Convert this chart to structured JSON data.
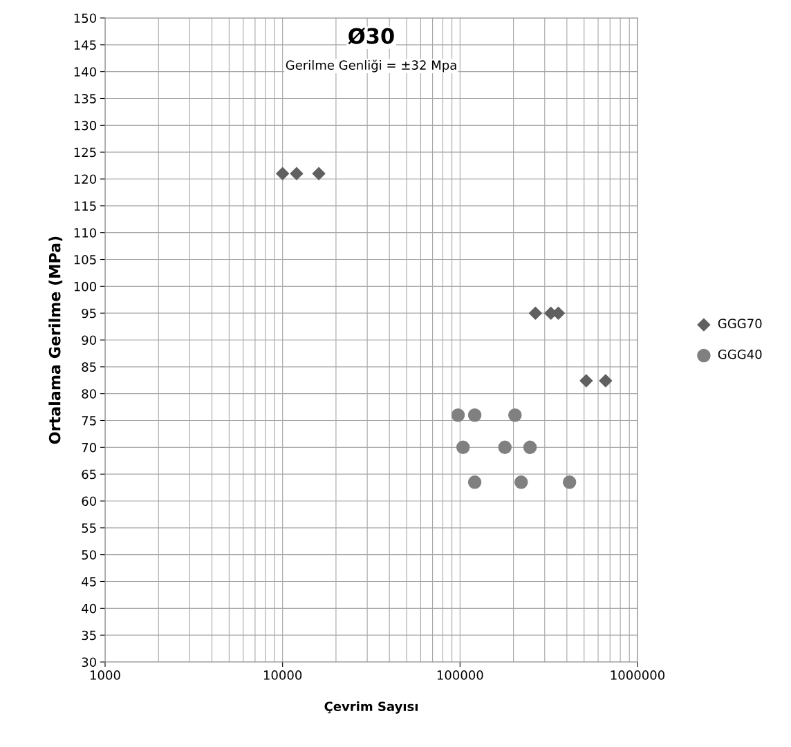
{
  "chart_data": {
    "type": "scatter",
    "title": "Ø30",
    "subtitle": "Gerilme Genliği = ±32 Mpa",
    "xlabel": "Çevrim Sayısı",
    "ylabel": "Ortalama Gerilme (MPa)",
    "log": "x",
    "xlim": [
      1000,
      1000000
    ],
    "xticks": [
      1000,
      10000,
      100000,
      1000000
    ],
    "ylim": [
      30,
      150
    ],
    "yticks": [
      30,
      35,
      40,
      45,
      50,
      55,
      60,
      65,
      70,
      75,
      80,
      85,
      90,
      95,
      100,
      105,
      110,
      115,
      120,
      125,
      130,
      135,
      140,
      145,
      150
    ],
    "grid": true,
    "legend": "right",
    "series": [
      {
        "name": "GGG70",
        "color": "#606060",
        "marker": "diamond",
        "x": [
          10000,
          12000,
          16000,
          266000,
          325000,
          358000,
          514000,
          661000
        ],
        "values": [
          121,
          121,
          121,
          95,
          95,
          95,
          82.4,
          82.4
        ]
      },
      {
        "name": "GGG40",
        "color": "#808080",
        "marker": "circle",
        "x": [
          97500,
          121000,
          204000,
          104000,
          179000,
          248000,
          121000,
          221000,
          414000
        ],
        "values": [
          76,
          76,
          76,
          70,
          70,
          70,
          63.5,
          63.5,
          63.5
        ]
      }
    ]
  }
}
